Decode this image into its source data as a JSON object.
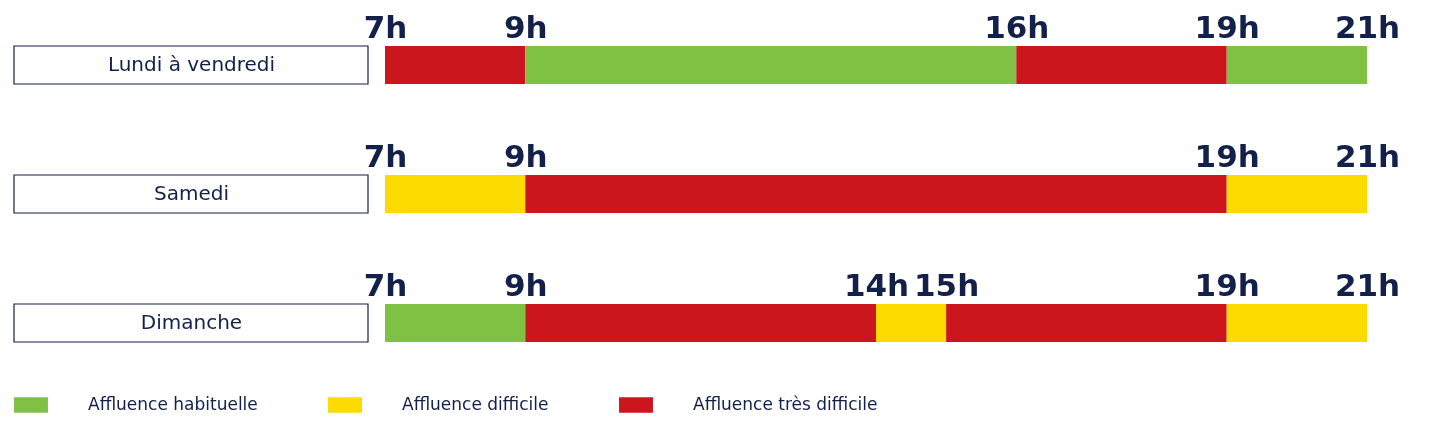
{
  "chart_data": [
    {
      "type": "bar",
      "orientation": "horizontal",
      "categories": [
        "Lundi à vendredi"
      ],
      "xlim": [
        7,
        21
      ],
      "xticks": [
        {
          "value": 7,
          "label": "7h"
        },
        {
          "value": 9,
          "label": "9h"
        },
        {
          "value": 16,
          "label": "16h"
        },
        {
          "value": 19,
          "label": "19h"
        },
        {
          "value": 21,
          "label": "21h"
        }
      ],
      "series": [
        {
          "color": "#cb161e",
          "base": [
            7
          ],
          "values": [
            2
          ]
        },
        {
          "color": "#7fc142",
          "base": [
            9
          ],
          "values": [
            7
          ]
        },
        {
          "color": "#cb161e",
          "base": [
            16
          ],
          "values": [
            3
          ]
        },
        {
          "color": "#7fc142",
          "base": [
            19
          ],
          "values": [
            2
          ]
        }
      ]
    },
    {
      "type": "bar",
      "orientation": "horizontal",
      "categories": [
        "Samedi"
      ],
      "xlim": [
        7,
        21
      ],
      "xticks": [
        {
          "value": 7,
          "label": "7h"
        },
        {
          "value": 9,
          "label": "9h"
        },
        {
          "value": 19,
          "label": "19h"
        },
        {
          "value": 21,
          "label": "21h"
        }
      ],
      "series": [
        {
          "color": "#fcdb00",
          "base": [
            7
          ],
          "values": [
            2
          ]
        },
        {
          "color": "#cb161e",
          "base": [
            9
          ],
          "values": [
            10
          ]
        },
        {
          "color": "#fcdb00",
          "base": [
            19
          ],
          "values": [
            2
          ]
        }
      ]
    },
    {
      "type": "bar",
      "orientation": "horizontal",
      "categories": [
        "Dimanche"
      ],
      "xlim": [
        7,
        21
      ],
      "legend": "bottom",
      "xticks": [
        {
          "value": 7,
          "label": "7h"
        },
        {
          "value": 9,
          "label": "9h"
        },
        {
          "value": 14,
          "label": "14h"
        },
        {
          "value": 15,
          "label": "15h"
        },
        {
          "value": 19,
          "label": "19h"
        },
        {
          "value": 21,
          "label": "21h"
        }
      ],
      "series": [
        {
          "name": "Affluence habituelle",
          "color": "#7fc142",
          "base": [
            7
          ],
          "values": [
            2
          ]
        },
        {
          "name": "Affluence difficile",
          "color": "#fcdb00",
          "base": [
            14
          ],
          "values": [
            1
          ]
        },
        {
          "name": "Affluence très difficile",
          "color": "#cb161e",
          "base": [
            9
          ],
          "values": [
            5
          ]
        },
        {
          "color": "#cb161e",
          "base": [
            15
          ],
          "values": [
            4
          ]
        },
        {
          "color": "#fcdb00",
          "base": [
            19
          ],
          "values": [
            2
          ]
        }
      ]
    }
  ]
}
